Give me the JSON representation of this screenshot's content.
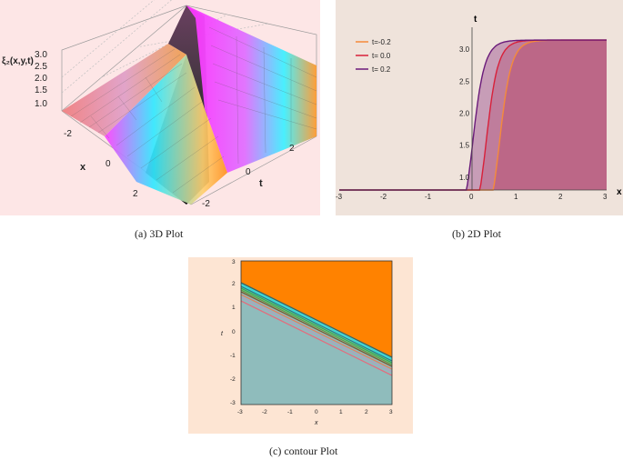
{
  "figure_a": {
    "z_label": "ξ₂(x,y,t)",
    "z_ticks": [
      "3.0",
      "2.5",
      "2.0",
      "1.5",
      "1.0"
    ],
    "x_label": "x",
    "x_ticks": [
      "-2",
      "0",
      "2"
    ],
    "t_label": "t",
    "t_ticks": [
      "2",
      "0",
      "-2"
    ],
    "caption": "(a)  3D Plot"
  },
  "figure_b": {
    "caption": "(b)  2D Plot",
    "chart_data": {
      "type": "area",
      "xlabel": "x",
      "ylabel": "t",
      "x_ticks": [
        "-3",
        "-2",
        "-1",
        "0",
        "1",
        "2",
        "3"
      ],
      "y_ticks": [
        "1.0",
        "1.5",
        "2.0",
        "2.5",
        "3.0"
      ],
      "xlim": [
        -3,
        3
      ],
      "ylim": [
        0.8,
        3.2
      ],
      "series": [
        {
          "name": "t=-0.2",
          "shift": 0.6,
          "color": "#f58a3a"
        },
        {
          "name": "t= 0.0",
          "shift": 0.3,
          "color": "#d8203a"
        },
        {
          "name": "t= 0.2",
          "shift": 0.0,
          "color": "#6a1a7a"
        }
      ]
    }
  },
  "figure_c": {
    "caption": "(c)  contour Plot",
    "xlabel": "x",
    "ylabel": "t",
    "x_ticks": [
      "-3",
      "-2",
      "-1",
      "0",
      "1",
      "2",
      "3"
    ],
    "y_ticks": [
      "3",
      "2",
      "1",
      "0",
      "-1",
      "-2",
      "-3"
    ],
    "colors": {
      "upper": "#ff8200",
      "lower": "#8fbcbc"
    }
  }
}
